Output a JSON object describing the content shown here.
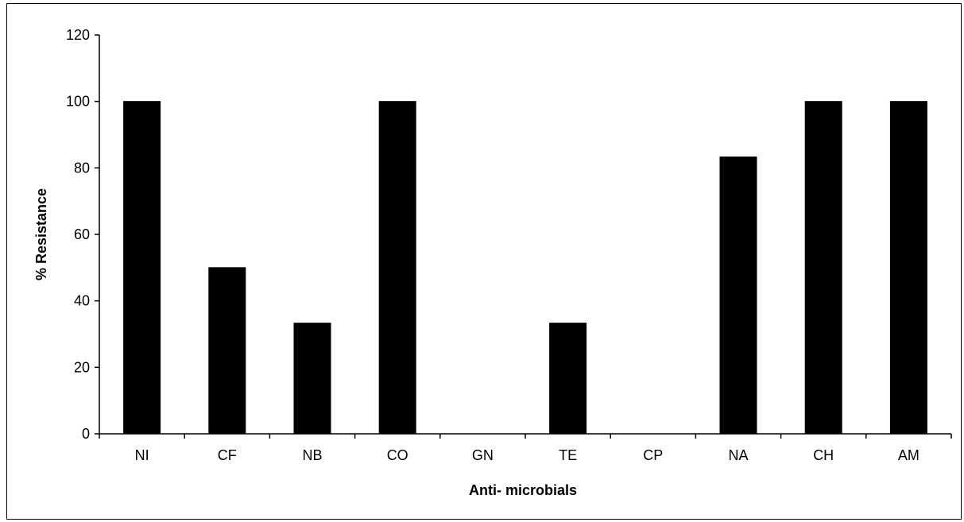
{
  "chart_data": {
    "type": "bar",
    "categories": [
      "NI",
      "CF",
      "NB",
      "CO",
      "GN",
      "TE",
      "CP",
      "NA",
      "CH",
      "AM"
    ],
    "values": [
      100,
      50,
      33.3,
      100,
      0,
      33.3,
      0,
      83.3,
      100,
      100
    ],
    "ylabel": "% Resistance",
    "xlabel": "Anti- microbials",
    "ylim": [
      0,
      120
    ],
    "yticks": [
      0,
      20,
      40,
      60,
      80,
      100,
      120
    ],
    "grid": false,
    "legend": "none",
    "bar_color": "#000000"
  }
}
